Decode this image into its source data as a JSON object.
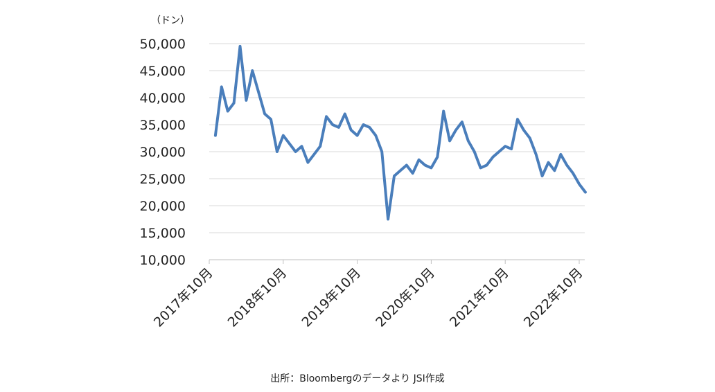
{
  "chart_data": {
    "type": "line",
    "unit_label": "（ドン）",
    "y_ticks": [
      "50,000",
      "45,000",
      "40,000",
      "35,000",
      "30,000",
      "25,000",
      "20,000",
      "15,000",
      "10,000"
    ],
    "x_ticks": [
      "2017年10月",
      "2018年10月",
      "2019年10月",
      "2020年10月",
      "2021年10月",
      "2022年10月"
    ],
    "ylim": [
      10000,
      50000
    ],
    "grid": true,
    "line_color": "#4a7ebb",
    "series": [
      {
        "x": [
          "2017-11",
          "2017-12",
          "2018-01",
          "2018-02",
          "2018-03",
          "2018-04",
          "2018-05",
          "2018-06",
          "2018-07",
          "2018-08",
          "2018-09",
          "2018-10",
          "2018-11",
          "2018-12",
          "2019-01",
          "2019-02",
          "2019-03",
          "2019-04",
          "2019-05",
          "2019-06",
          "2019-07",
          "2019-08",
          "2019-09",
          "2019-10",
          "2019-11",
          "2019-12",
          "2020-01",
          "2020-02",
          "2020-03",
          "2020-04",
          "2020-05",
          "2020-06",
          "2020-07",
          "2020-08",
          "2020-09",
          "2020-10",
          "2020-11",
          "2020-12",
          "2021-01",
          "2021-02",
          "2021-03",
          "2021-04",
          "2021-05",
          "2021-06",
          "2021-07",
          "2021-08",
          "2021-09",
          "2021-10",
          "2021-11",
          "2021-12",
          "2022-01",
          "2022-02",
          "2022-03",
          "2022-04",
          "2022-05",
          "2022-06",
          "2022-07",
          "2022-08",
          "2022-09",
          "2022-10",
          "2022-11"
        ],
        "values": [
          33000,
          42000,
          37500,
          39000,
          49500,
          39500,
          45000,
          41000,
          37000,
          36000,
          30000,
          33000,
          31500,
          30000,
          31000,
          28000,
          29500,
          31000,
          36500,
          35000,
          34500,
          37000,
          34000,
          33000,
          35000,
          34500,
          33000,
          30000,
          17500,
          25500,
          26500,
          27500,
          26000,
          28500,
          27500,
          27000,
          29000,
          37500,
          32000,
          34000,
          35500,
          32000,
          30000,
          27000,
          27500,
          29000,
          30000,
          31000,
          30500,
          36000,
          34000,
          32500,
          29500,
          25500,
          28000,
          26500,
          29500,
          27500,
          26000,
          24000,
          22500
        ]
      }
    ],
    "source": "出所：Bloombergのデータより JSI作成"
  }
}
